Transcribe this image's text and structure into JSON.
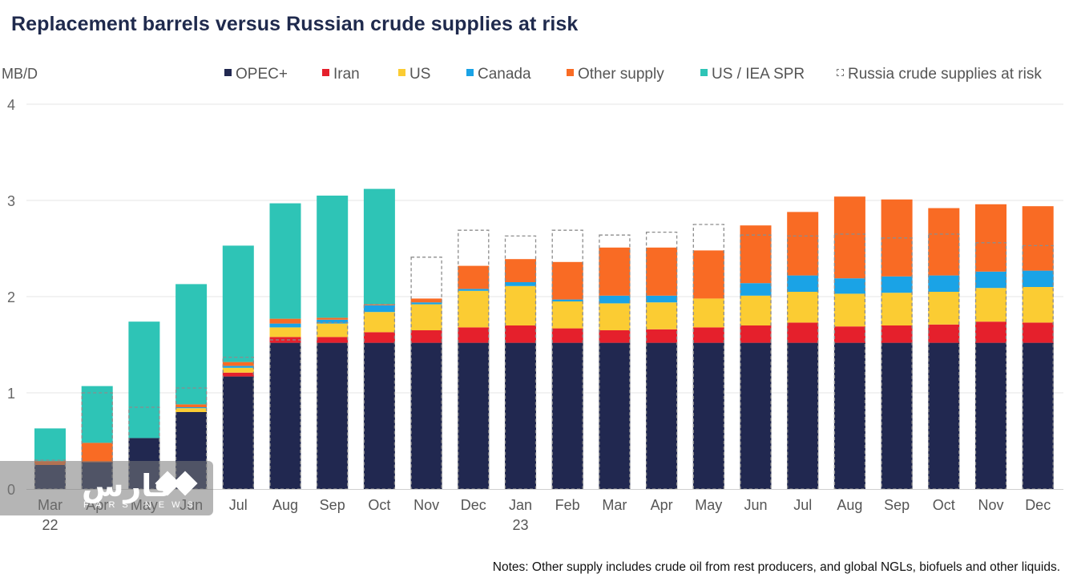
{
  "title": "Replacement barrels versus Russian crude supplies at risk",
  "unit_label": "MB/D",
  "notes": "Notes: Other supply includes crude oil from rest producers, and global NGLs, biofuels and other liquids.",
  "watermark": {
    "logo_text": "فارس",
    "sub_text": "FARS NEWS"
  },
  "chart_data": {
    "type": "bar",
    "stacked": true,
    "ylim": [
      0,
      4
    ],
    "yticks": [
      "0",
      "1",
      "2",
      "3",
      "4"
    ],
    "grid": true,
    "legend_position": "top",
    "categories": [
      "Mar",
      "Apr",
      "May",
      "Jun",
      "Jul",
      "Aug",
      "Sep",
      "Oct",
      "Nov",
      "Dec",
      "Jan",
      "Feb",
      "Mar",
      "Apr",
      "May",
      "Jun",
      "Jul",
      "Aug",
      "Sep",
      "Oct",
      "Nov",
      "Dec"
    ],
    "year_labels": {
      "0": "22",
      "10": "23"
    },
    "series": [
      {
        "name": "OPEC+",
        "color": "#212850",
        "values": [
          0.25,
          0.28,
          0.53,
          0.8,
          1.17,
          1.52,
          1.52,
          1.52,
          1.52,
          1.52,
          1.52,
          1.52,
          1.52,
          1.52,
          1.52,
          1.52,
          1.52,
          1.52,
          1.52,
          1.52,
          1.52,
          1.52
        ]
      },
      {
        "name": "Iran",
        "color": "#e5202c",
        "values": [
          0,
          0,
          0,
          0,
          0.04,
          0.06,
          0.06,
          0.11,
          0.13,
          0.16,
          0.18,
          0.15,
          0.13,
          0.14,
          0.16,
          0.18,
          0.21,
          0.17,
          0.18,
          0.19,
          0.22,
          0.21
        ]
      },
      {
        "name": "US",
        "color": "#fbcc33",
        "values": [
          0,
          0,
          0,
          0.04,
          0.05,
          0.1,
          0.14,
          0.21,
          0.27,
          0.38,
          0.41,
          0.28,
          0.28,
          0.28,
          0.3,
          0.31,
          0.32,
          0.34,
          0.34,
          0.34,
          0.35,
          0.37
        ]
      },
      {
        "name": "Canada",
        "color": "#1aa3e6",
        "values": [
          0,
          0,
          0,
          0.01,
          0.02,
          0.04,
          0.04,
          0.07,
          0.02,
          0.02,
          0.04,
          0.02,
          0.08,
          0.07,
          0,
          0.13,
          0.17,
          0.16,
          0.17,
          0.17,
          0.17,
          0.17
        ]
      },
      {
        "name": "Other supply",
        "color": "#f96b24",
        "values": [
          0.04,
          0.2,
          0,
          0.03,
          0.04,
          0.05,
          0.02,
          0.01,
          0.04,
          0.24,
          0.24,
          0.39,
          0.5,
          0.5,
          0.5,
          0.6,
          0.66,
          0.85,
          0.8,
          0.7,
          0.7,
          0.67
        ]
      },
      {
        "name": "US / IEA SPR",
        "color": "#2ec4b6",
        "values": [
          0.34,
          0.59,
          1.21,
          1.25,
          1.21,
          1.2,
          1.27,
          1.2,
          0,
          0,
          0,
          0,
          0,
          0,
          0,
          0,
          0,
          0,
          0,
          0,
          0,
          0
        ]
      }
    ],
    "reference_series": {
      "name": "Russia crude supplies at risk",
      "style": "dashed-outline",
      "color": "#8c8c8c",
      "values": [
        0.3,
        1.0,
        0.85,
        1.05,
        1.37,
        1.55,
        1.73,
        1.92,
        2.41,
        2.69,
        2.63,
        2.69,
        2.64,
        2.67,
        2.75,
        2.64,
        2.63,
        2.65,
        2.61,
        2.65,
        2.56,
        2.53
      ]
    }
  }
}
